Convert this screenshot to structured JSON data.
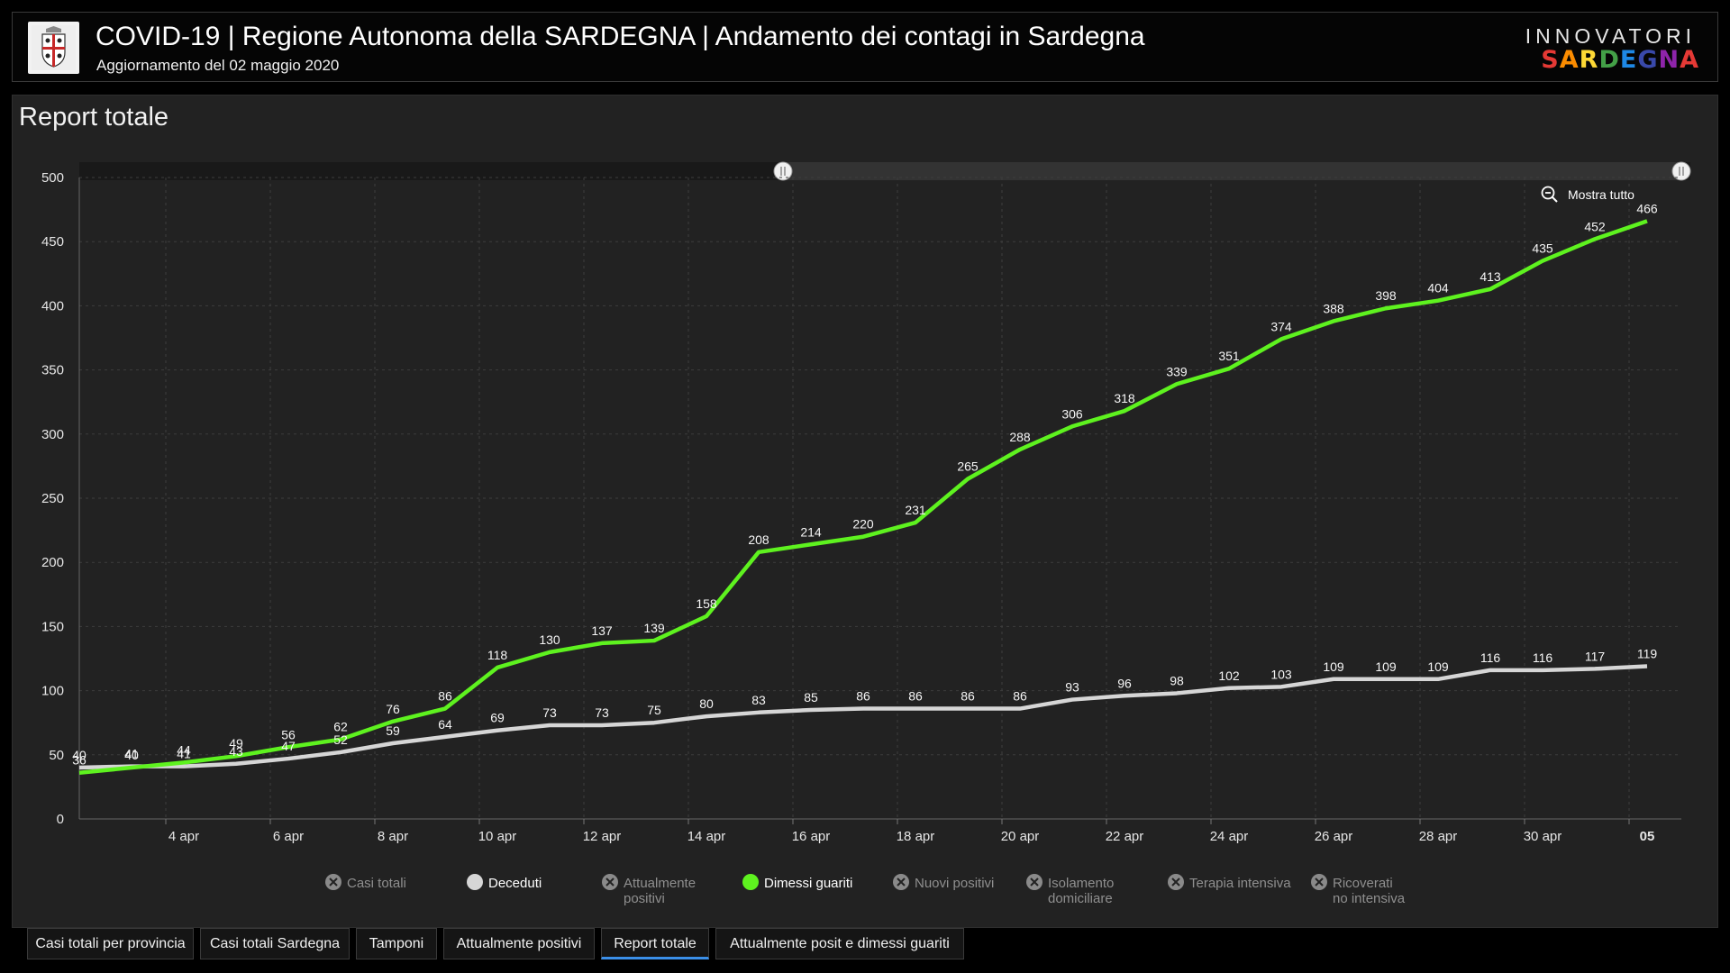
{
  "header": {
    "title": "COVID-19 | Regione Autonoma della SARDEGNA | Andamento dei contagi in Sardegna",
    "subtitle": "Aggiornamento del 02 maggio 2020",
    "brand_top": "INNOVATORI",
    "brand_letters": [
      {
        "ch": "S",
        "color": "#e53935"
      },
      {
        "ch": "A",
        "color": "#fb8c00"
      },
      {
        "ch": "R",
        "color": "#fdd835"
      },
      {
        "ch": "D",
        "color": "#43a047"
      },
      {
        "ch": "E",
        "color": "#1e88e5"
      },
      {
        "ch": "G",
        "color": "#3949ab"
      },
      {
        "ch": "N",
        "color": "#8e24aa"
      },
      {
        "ch": "A",
        "color": "#e53935"
      }
    ]
  },
  "panel": {
    "title": "Report totale",
    "zoom_reset": "Mostra tutto"
  },
  "tabs": [
    {
      "label": "Casi totali per provincia",
      "active": false
    },
    {
      "label": "Casi totali Sardegna",
      "active": false
    },
    {
      "label": "Tamponi",
      "active": false
    },
    {
      "label": "Attualmente positivi",
      "active": false
    },
    {
      "label": "Report totale",
      "active": true
    },
    {
      "label": "Attualmente posit e dimessi guariti",
      "active": false
    }
  ],
  "colors": {
    "dimessi": "#5ef21f",
    "deceduti": "#d6d6d6",
    "active_tab": "#3b8fe8"
  },
  "chart_data": {
    "type": "line",
    "x_dates": [
      "2 apr",
      "3 apr",
      "4 apr",
      "5 apr",
      "6 apr",
      "7 apr",
      "8 apr",
      "9 apr",
      "10 apr",
      "11 apr",
      "12 apr",
      "13 apr",
      "14 apr",
      "15 apr",
      "16 apr",
      "17 apr",
      "18 apr",
      "19 apr",
      "20 apr",
      "21 apr",
      "22 apr",
      "23 apr",
      "24 apr",
      "25 apr",
      "26 apr",
      "27 apr",
      "28 apr",
      "29 apr",
      "30 apr",
      "1 mag",
      "2 mag"
    ],
    "x_tick_labels": [
      "4 apr",
      "6 apr",
      "8 apr",
      "10 apr",
      "12 apr",
      "14 apr",
      "16 apr",
      "18 apr",
      "20 apr",
      "22 apr",
      "24 apr",
      "26 apr",
      "28 apr",
      "30 apr",
      "05"
    ],
    "y_ticks": [
      0,
      50,
      100,
      150,
      200,
      250,
      300,
      350,
      400,
      450,
      500
    ],
    "ylim": [
      0,
      500
    ],
    "grid": true,
    "series": [
      {
        "name": "Dimessi guariti",
        "color": "#5ef21f",
        "values": [
          36,
          40,
          44,
          49,
          56,
          62,
          76,
          86,
          118,
          130,
          137,
          139,
          158,
          208,
          214,
          220,
          231,
          265,
          288,
          306,
          318,
          339,
          351,
          374,
          388,
          398,
          404,
          413,
          435,
          452,
          466
        ]
      },
      {
        "name": "Deceduti",
        "color": "#d6d6d6",
        "values": [
          40,
          41,
          41,
          43,
          47,
          52,
          59,
          64,
          69,
          73,
          73,
          75,
          80,
          83,
          85,
          86,
          86,
          86,
          86,
          93,
          96,
          98,
          102,
          103,
          109,
          109,
          109,
          116,
          116,
          117,
          119
        ]
      }
    ],
    "legend": [
      {
        "label": "Casi totali",
        "enabled": false
      },
      {
        "label": "Deceduti",
        "enabled": true,
        "color": "#d6d6d6"
      },
      {
        "label": "Attualmente positivi",
        "enabled": false
      },
      {
        "label": "Dimessi guariti",
        "enabled": true,
        "color": "#5ef21f"
      },
      {
        "label": "Nuovi positivi",
        "enabled": false
      },
      {
        "label": "Isolamento domiciliare",
        "enabled": false
      },
      {
        "label": "Terapia intensiva",
        "enabled": false
      },
      {
        "label": "Ricoverati no intensiva",
        "enabled": false
      }
    ]
  }
}
